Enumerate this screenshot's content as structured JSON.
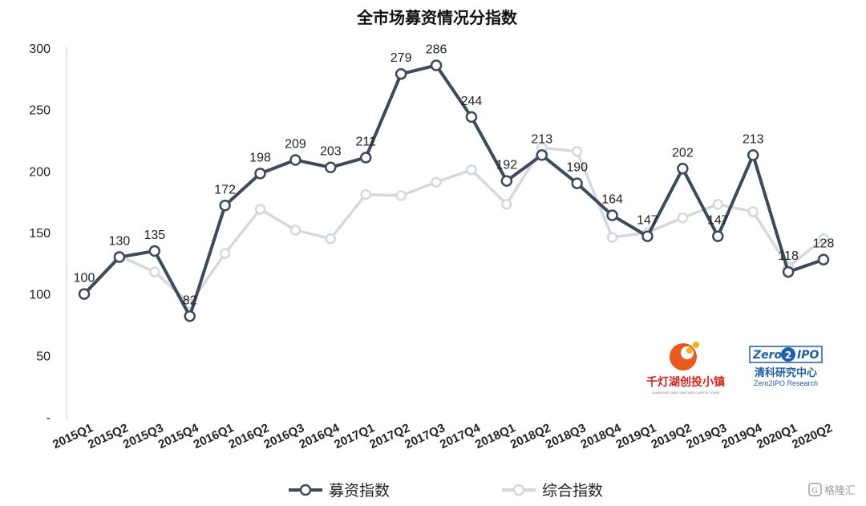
{
  "chart_data": {
    "type": "line",
    "title": "全市场募资情况分指数",
    "categories": [
      "2015Q1",
      "2015Q2",
      "2015Q3",
      "2015Q4",
      "2016Q1",
      "2016Q2",
      "2016Q3",
      "2016Q4",
      "2017Q1",
      "2017Q2",
      "2017Q3",
      "2017Q4",
      "2018Q1",
      "2018Q2",
      "2018Q3",
      "2018Q4",
      "2019Q1",
      "2019Q2",
      "2019Q3",
      "2019Q4",
      "2020Q1",
      "2020Q2"
    ],
    "yticks": [
      "300",
      "250",
      "200",
      "150",
      "100",
      "50",
      "-"
    ],
    "ylim": [
      0,
      300
    ],
    "grid": false,
    "legend_position": "bottom",
    "series": [
      {
        "name": "募资指数",
        "color": "#3d4a5c",
        "values": [
          100,
          130,
          135,
          82,
          172,
          198,
          209,
          203,
          211,
          279,
          286,
          244,
          192,
          213,
          190,
          164,
          147,
          202,
          147,
          213,
          118,
          128
        ],
        "labels": [
          "100",
          "130",
          "135",
          "82",
          "172",
          "198",
          "209",
          "203",
          "211",
          "279",
          "286",
          "244",
          "192",
          "213",
          "190",
          "164",
          "147",
          "202",
          "147",
          "213",
          "118",
          "128"
        ]
      },
      {
        "name": "综合指数",
        "color": "#d5d9df",
        "values": [
          100,
          131,
          118,
          92,
          133,
          169,
          152,
          145,
          181,
          180,
          191,
          201,
          173,
          219,
          216,
          146,
          150,
          162,
          173,
          167,
          122,
          145
        ]
      }
    ]
  },
  "logos": {
    "left_name": "千灯湖创投小镇",
    "left_sub": "QIANDENG LAKE VENTURE CAPITAL TOWN",
    "right_brand_a": "Zero",
    "right_brand_b": "2",
    "right_brand_c": "IPO",
    "right_name": "清科研究中心",
    "right_sub": "Zero2IPO Research"
  },
  "watermark": {
    "text": "格隆汇",
    "icon": "g-logo-icon"
  }
}
